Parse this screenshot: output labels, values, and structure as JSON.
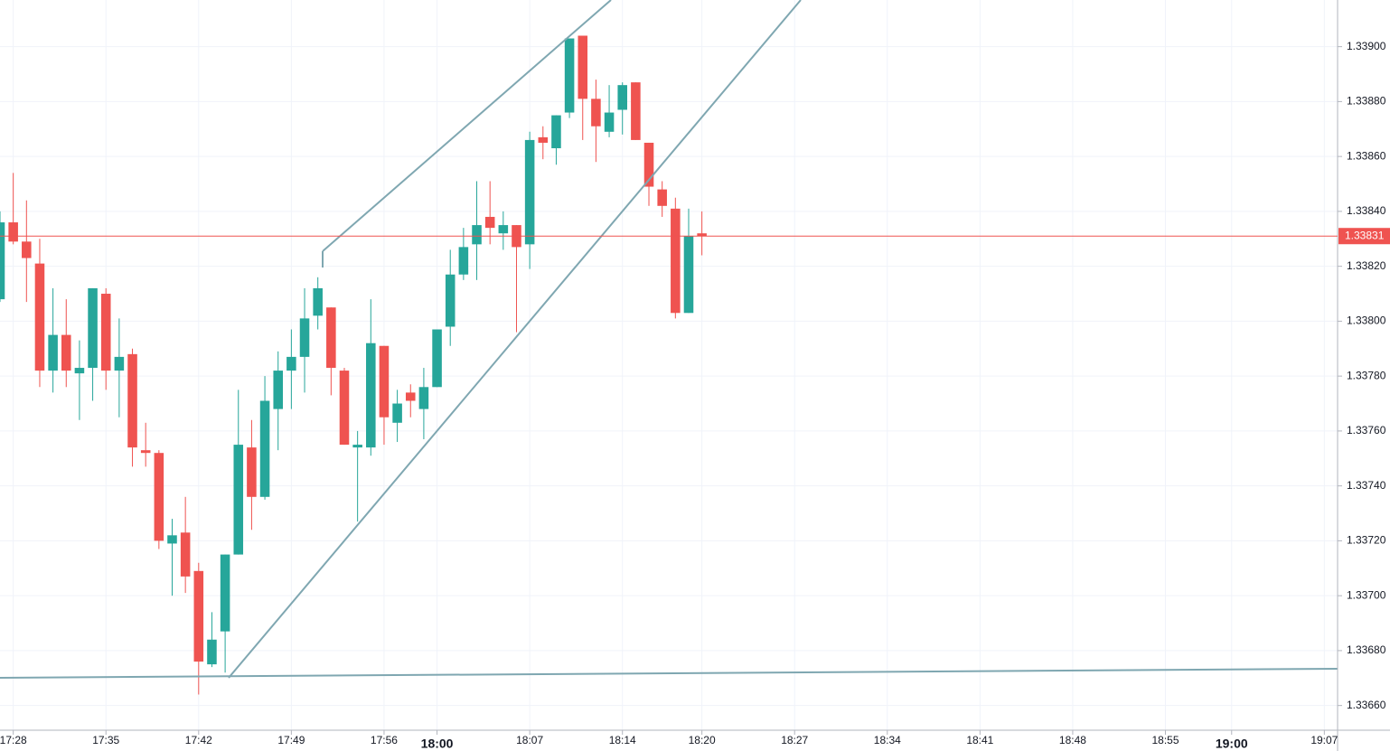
{
  "chart_data": {
    "type": "candlestick",
    "x": [
      "17:27",
      "17:28",
      "17:29",
      "17:30",
      "17:31",
      "17:32",
      "17:33",
      "17:34",
      "17:35",
      "17:36",
      "17:37",
      "17:38",
      "17:39",
      "17:40",
      "17:41",
      "17:42",
      "17:43",
      "17:44",
      "17:45",
      "17:46",
      "17:47",
      "17:48",
      "17:49",
      "17:50",
      "17:51",
      "17:52",
      "17:53",
      "17:54",
      "17:55",
      "17:56",
      "17:57",
      "17:58",
      "17:59",
      "18:00",
      "18:01",
      "18:02",
      "18:03",
      "18:04",
      "18:05",
      "18:06",
      "18:07",
      "18:08",
      "18:09",
      "18:10",
      "18:11",
      "18:12",
      "18:13",
      "18:14",
      "18:15",
      "18:16",
      "18:17",
      "18:18",
      "18:19",
      "18:20"
    ],
    "open": [
      1.33808,
      1.33836,
      1.33829,
      1.33821,
      1.33782,
      1.33795,
      1.33781,
      1.33783,
      1.3381,
      1.33782,
      1.33788,
      1.33753,
      1.33752,
      1.33719,
      1.33723,
      1.33709,
      1.33675,
      1.33687,
      1.33715,
      1.33754,
      1.33736,
      1.33768,
      1.33782,
      1.33787,
      1.33802,
      1.33805,
      1.33782,
      1.33754,
      1.33754,
      1.33791,
      1.33763,
      1.33774,
      1.33768,
      1.33776,
      1.33798,
      1.33817,
      1.33828,
      1.33838,
      1.33832,
      1.33835,
      1.33828,
      1.33867,
      1.33863,
      1.33876,
      1.33904,
      1.33881,
      1.33869,
      1.33877,
      1.33887,
      1.33865,
      1.33848,
      1.33841,
      1.33803,
      1.33832
    ],
    "high": [
      1.3384,
      1.33854,
      1.33844,
      1.3383,
      1.33812,
      1.33808,
      1.33793,
      1.33812,
      1.33812,
      1.33801,
      1.3379,
      1.33763,
      1.33753,
      1.33728,
      1.33736,
      1.33712,
      1.33694,
      1.33715,
      1.33775,
      1.33764,
      1.3378,
      1.33789,
      1.33797,
      1.33812,
      1.33816,
      1.33805,
      1.33783,
      1.3376,
      1.33808,
      1.33791,
      1.33775,
      1.33777,
      1.33783,
      1.33797,
      1.33826,
      1.33834,
      1.33851,
      1.33851,
      1.3384,
      1.33835,
      1.33869,
      1.33871,
      1.33875,
      1.33903,
      1.33904,
      1.33888,
      1.33886,
      1.33887,
      1.33887,
      1.33865,
      1.33851,
      1.33845,
      1.33841,
      1.3384
    ],
    "low": [
      1.33807,
      1.33828,
      1.33807,
      1.33776,
      1.33774,
      1.33776,
      1.33764,
      1.33771,
      1.33775,
      1.33765,
      1.33747,
      1.33747,
      1.33717,
      1.337,
      1.33701,
      1.33664,
      1.33674,
      1.33672,
      1.33715,
      1.33724,
      1.33735,
      1.33753,
      1.33768,
      1.33774,
      1.33797,
      1.33773,
      1.33755,
      1.33727,
      1.33751,
      1.33755,
      1.33756,
      1.33765,
      1.33757,
      1.33776,
      1.33791,
      1.33815,
      1.33815,
      1.33828,
      1.33826,
      1.33796,
      1.33819,
      1.33859,
      1.33857,
      1.33874,
      1.33866,
      1.33858,
      1.33867,
      1.33868,
      1.33866,
      1.33842,
      1.33838,
      1.33801,
      1.33803,
      1.33824
    ],
    "close": [
      1.33836,
      1.33829,
      1.33823,
      1.33782,
      1.33795,
      1.33782,
      1.33783,
      1.33812,
      1.33782,
      1.33787,
      1.33754,
      1.33752,
      1.3372,
      1.33722,
      1.33707,
      1.33676,
      1.33684,
      1.33715,
      1.33755,
      1.33736,
      1.33771,
      1.33782,
      1.33787,
      1.33801,
      1.33812,
      1.33783,
      1.33755,
      1.33755,
      1.33792,
      1.33765,
      1.3377,
      1.33771,
      1.33776,
      1.33797,
      1.33817,
      1.33827,
      1.33835,
      1.33834,
      1.33835,
      1.33827,
      1.33866,
      1.33865,
      1.33875,
      1.33903,
      1.33881,
      1.33871,
      1.33876,
      1.33886,
      1.33866,
      1.33849,
      1.33842,
      1.33803,
      1.33831,
      1.33831
    ],
    "up_color": "#26a69a",
    "down_color": "#ef5350",
    "last_price": 1.33831,
    "last_price_color": "#ef5350",
    "xlim": [
      "17:27",
      "19:08"
    ],
    "xticks": [
      "17:28",
      "17:35",
      "17:42",
      "17:49",
      "17:56",
      "18:00",
      "18:07",
      "18:14",
      "18:20",
      "18:27",
      "18:34",
      "18:41",
      "18:48",
      "18:55",
      "19:00",
      "19:07"
    ],
    "ylim": [
      1.33651,
      1.33917
    ],
    "yticks": [
      {
        "value": 1.3366,
        "label": "1.33660"
      },
      {
        "value": 1.3368,
        "label": "1.33680"
      },
      {
        "value": 1.337,
        "label": "1.33700"
      },
      {
        "value": 1.3372,
        "label": "1.33720"
      },
      {
        "value": 1.3374,
        "label": "1.33740"
      },
      {
        "value": 1.3376,
        "label": "1.33760"
      },
      {
        "value": 1.3378,
        "label": "1.33780"
      },
      {
        "value": 1.338,
        "label": "1.33800"
      },
      {
        "value": 1.3382,
        "label": "1.33820"
      },
      {
        "value": 1.3384,
        "label": "1.33840"
      },
      {
        "value": 1.3386,
        "label": "1.33860"
      },
      {
        "value": 1.3388,
        "label": "1.33880"
      },
      {
        "value": 1.339,
        "label": "1.33900"
      }
    ],
    "grid": true
  }
}
